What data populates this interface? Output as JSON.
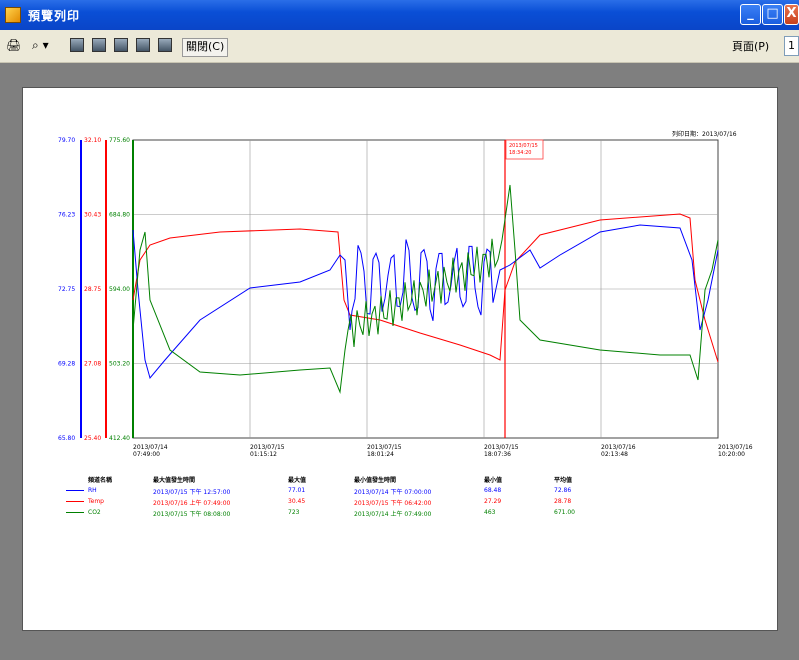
{
  "window": {
    "title": "預覽列印",
    "min": "_",
    "max": "□",
    "close": "X"
  },
  "toolbar": {
    "print": "🖨",
    "zoom": "⌕",
    "close_label": "關閉(C)",
    "page_label": "頁面(P)",
    "page_value": "1"
  },
  "print_date": "列印日期：2013/07/16",
  "axes": {
    "rh": {
      "color": "#0000ff",
      "ticks": [
        "79.70",
        "76.23",
        "72.75",
        "69.28",
        "65.80"
      ]
    },
    "temp": {
      "color": "#ff0000",
      "ticks": [
        "32.10",
        "30.43",
        "28.75",
        "27.08",
        "25.40"
      ]
    },
    "co2": {
      "color": "#008000",
      "ticks": [
        "775.60",
        "684.80",
        "594.00",
        "503.20",
        "412.40"
      ]
    }
  },
  "x_ticks": [
    [
      "2013/07/14",
      "07:49:00"
    ],
    [
      "2013/07/15",
      "01:15:12"
    ],
    [
      "2013/07/15",
      "18:01:24"
    ],
    [
      "2013/07/15",
      "18:07:36"
    ],
    [
      "2013/07/16",
      "02:13:48"
    ],
    [
      "2013/07/16",
      "10:20:00"
    ]
  ],
  "cursor_label": [
    "2013/07/15",
    "18:34:20"
  ],
  "legend": {
    "headers": [
      "頻道名稱",
      "最大值發生時間",
      "最大值",
      "最小值發生時間",
      "最小值",
      "平均值"
    ],
    "rows": [
      {
        "name": "RH",
        "color": "#0000ff",
        "max_time": "2013/07/15 下午 12:57:00",
        "max": "77.01",
        "min_time": "2013/07/14 下午 07:00:00",
        "min": "68.48",
        "avg": "72.86"
      },
      {
        "name": "Temp",
        "color": "#ff0000",
        "max_time": "2013/07/16 上午 07:49:00",
        "max": "30.45",
        "min_time": "2013/07/15 下午 06:42:00",
        "min": "27.29",
        "avg": "28.78"
      },
      {
        "name": "CO2",
        "color": "#008000",
        "max_time": "2013/07/15 下午 08:08:00",
        "max": "723",
        "min_time": "2013/07/14 上午 07:49:00",
        "min": "463",
        "avg": "671.00"
      }
    ]
  }
}
